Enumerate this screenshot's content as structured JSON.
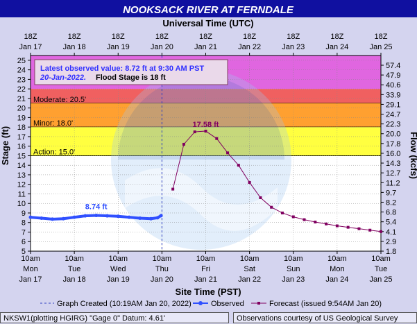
{
  "title": "NOOKSACK RIVER AT FERNDALE",
  "top_axis_title": "Universal Time (UTC)",
  "top_ticks": [
    {
      "l1": "18Z",
      "l2": "Jan 17"
    },
    {
      "l1": "18Z",
      "l2": "Jan 18"
    },
    {
      "l1": "18Z",
      "l2": "Jan 19"
    },
    {
      "l1": "18Z",
      "l2": "Jan 20"
    },
    {
      "l1": "18Z",
      "l2": "Jan 21"
    },
    {
      "l1": "18Z",
      "l2": "Jan 22"
    },
    {
      "l1": "18Z",
      "l2": "Jan 23"
    },
    {
      "l1": "18Z",
      "l2": "Jan 24"
    },
    {
      "l1": "18Z",
      "l2": "Jan 25"
    }
  ],
  "bottom_axis_title": "Site Time (PST)",
  "bottom_ticks": [
    {
      "l1": "10am",
      "l2": "Mon",
      "l3": "Jan 17"
    },
    {
      "l1": "10am",
      "l2": "Tue",
      "l3": "Jan 18"
    },
    {
      "l1": "10am",
      "l2": "Wed",
      "l3": "Jan 19"
    },
    {
      "l1": "10am",
      "l2": "Thu",
      "l3": "Jan 20"
    },
    {
      "l1": "10am",
      "l2": "Fri",
      "l3": "Jan 21"
    },
    {
      "l1": "10am",
      "l2": "Sat",
      "l3": "Jan 22"
    },
    {
      "l1": "10am",
      "l2": "Sun",
      "l3": "Jan 23"
    },
    {
      "l1": "10am",
      "l2": "Mon",
      "l3": "Jan 24"
    },
    {
      "l1": "10am",
      "l2": "Tue",
      "l3": "Jan 25"
    }
  ],
  "left_axis_title": "Stage (ft)",
  "right_axis_title": "Flow (kcfs)",
  "stage_ticks": [
    5,
    6,
    7,
    8,
    9,
    10,
    11,
    12,
    13,
    14,
    15,
    16,
    17,
    18,
    19,
    20,
    21,
    22,
    23,
    24,
    25
  ],
  "flow_ticks": [
    "1.8",
    "2.9",
    "4.1",
    "5.4",
    "6.8",
    "8.2",
    "9.7",
    "11.2",
    "12.7",
    "14.3",
    "16.0",
    "17.8",
    "20.0",
    "22.3",
    "24.7",
    "29.1",
    "33.9",
    "40.6",
    "47.9",
    "57.4"
  ],
  "bands": [
    {
      "label": "",
      "from": 22.0,
      "to": 25.5,
      "color": "#e066e0"
    },
    {
      "label": "",
      "from": 20.5,
      "to": 22.0,
      "color": "#f06060"
    },
    {
      "label": "Moderate: 20.5'",
      "from": 20.5,
      "to": 20.5,
      "color": "#f06060"
    },
    {
      "label": "Minor: 18.0'",
      "from": 18.0,
      "to": 20.5,
      "color": "#ffa030"
    },
    {
      "label": "Action: 15.0'",
      "from": 15.0,
      "to": 18.0,
      "color": "#ffff40"
    }
  ],
  "info_box": {
    "line1": "Latest observed value: 8.72 ft at 9:30 AM PST",
    "line2_date": "20-Jan-2022.",
    "line2_flood": "Flood Stage is 18 ft"
  },
  "legend": {
    "graph_created": "Graph Created (10:19AM Jan 20, 2022)",
    "observed": "Observed",
    "forecast": "Forecast (issued 9:54AM Jan 20)"
  },
  "footer_left": "NKSW1(plotting HGIRG) \"Gage 0\" Datum: 4.61'",
  "footer_right": "Observations courtesy of US Geological Survey",
  "chart_data": {
    "type": "line",
    "title": "NOOKSACK RIVER AT FERNDALE",
    "xlabel": "Site Time (PST)",
    "ylabel": "Stage (ft)",
    "y2label": "Flow (kcfs)",
    "x_unit": "days since Jan 17 10am PST",
    "xlim": [
      0,
      8
    ],
    "ylim": [
      5,
      25.5
    ],
    "annotations": [
      {
        "text": "8.74 ft",
        "x": 1.5,
        "y": 8.74
      },
      {
        "text": "17.58 ft",
        "x": 4.0,
        "y": 17.58
      }
    ],
    "series": [
      {
        "name": "Observed",
        "color": "#3050ff",
        "x": [
          0,
          0.25,
          0.5,
          0.75,
          1.0,
          1.25,
          1.5,
          1.75,
          2.0,
          2.25,
          2.5,
          2.75,
          2.9,
          2.98
        ],
        "y": [
          8.55,
          8.45,
          8.35,
          8.4,
          8.55,
          8.7,
          8.74,
          8.7,
          8.65,
          8.55,
          8.45,
          8.4,
          8.5,
          8.72
        ]
      },
      {
        "name": "Forecast",
        "color": "#800060",
        "x": [
          3.25,
          3.5,
          3.75,
          4.0,
          4.25,
          4.5,
          4.75,
          5.0,
          5.25,
          5.5,
          5.75,
          6.0,
          6.25,
          6.5,
          6.75,
          7.0,
          7.25,
          7.5,
          7.75,
          8.0
        ],
        "y": [
          11.5,
          16.2,
          17.5,
          17.58,
          16.8,
          15.3,
          14.0,
          12.2,
          10.6,
          9.6,
          9.0,
          8.6,
          8.3,
          8.05,
          7.85,
          7.65,
          7.5,
          7.35,
          7.2,
          7.05
        ]
      }
    ]
  }
}
